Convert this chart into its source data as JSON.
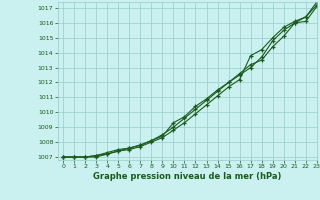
{
  "title": "Graphe pression niveau de la mer (hPa)",
  "background_color": "#caf0f0",
  "grid_color": "#99cccc",
  "line_color": "#1a5c1a",
  "xlim": [
    -0.5,
    23
  ],
  "ylim": [
    1006.8,
    1017.4
  ],
  "yticks": [
    1007,
    1008,
    1009,
    1010,
    1011,
    1012,
    1013,
    1014,
    1015,
    1016,
    1017
  ],
  "xticks": [
    0,
    1,
    2,
    3,
    4,
    5,
    6,
    7,
    8,
    9,
    10,
    11,
    12,
    13,
    14,
    15,
    16,
    17,
    18,
    19,
    20,
    21,
    22,
    23
  ],
  "series": [
    [
      1007.0,
      1007.0,
      1007.0,
      1007.1,
      1007.3,
      1007.5,
      1007.6,
      1007.8,
      1008.1,
      1008.4,
      1009.3,
      1009.7,
      1010.4,
      1010.9,
      1011.5,
      1012.0,
      1012.5,
      1013.0,
      1013.7,
      1014.8,
      1015.5,
      1016.0,
      1016.1,
      1017.1
    ],
    [
      1007.0,
      1007.0,
      1007.0,
      1007.0,
      1007.2,
      1007.4,
      1007.5,
      1007.7,
      1008.0,
      1008.3,
      1008.8,
      1009.3,
      1009.9,
      1010.5,
      1011.1,
      1011.7,
      1012.2,
      1013.8,
      1014.2,
      1015.0,
      1015.7,
      1016.1,
      1016.4,
      1017.2
    ],
    [
      1007.0,
      1007.0,
      1007.0,
      1007.1,
      1007.2,
      1007.4,
      1007.6,
      1007.8,
      1008.1,
      1008.5,
      1009.0,
      1009.6,
      1010.2,
      1010.8,
      1011.4,
      1012.0,
      1012.6,
      1013.2,
      1013.5,
      1014.4,
      1015.1,
      1016.0,
      1016.4,
      1017.4
    ]
  ]
}
